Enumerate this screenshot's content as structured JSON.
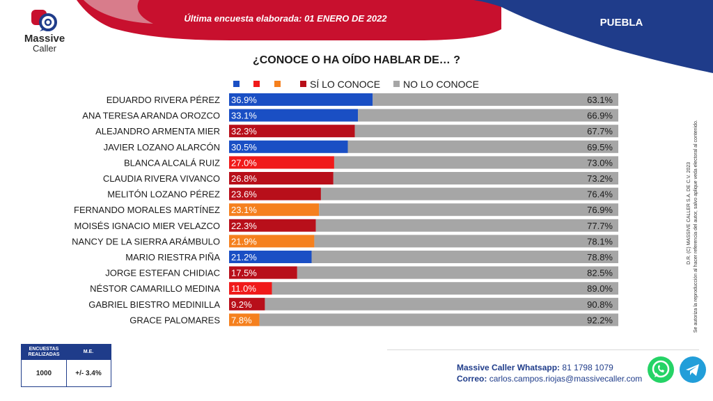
{
  "header": {
    "survey_date": "Última encuesta elaborada: 01  ENERO  DE 2022",
    "region": "PUEBLA",
    "logo_line1": "Massive",
    "logo_line2": "Caller"
  },
  "chart_data": {
    "type": "bar",
    "title": "¿CONOCE O HA OÍDO HABLAR DE… ?",
    "legend": [
      "SÍ LO CONOCE",
      "NO LO CONOCE"
    ],
    "categories": [
      "EDUARDO RIVERA PÉREZ",
      "ANA TERESA ARANDA OROZCO",
      "ALEJANDRO ARMENTA MIER",
      "JAVIER LOZANO ALARCÓN",
      "BLANCA ALCALÁ RUIZ",
      "CLAUDIA RIVERA VIVANCO",
      "MELITÓN LOZANO PÉREZ",
      "FERNANDO MORALES MARTÍNEZ",
      "MOISÉS IGNACIO MIER VELAZCO",
      "NANCY DE LA SIERRA ARÁMBULO",
      "MARIO RIESTRA PIÑA",
      "JORGE ESTEFAN CHIDIAC",
      "NÉSTOR CAMARILLO MEDINA",
      "GABRIEL BIESTRO MEDINILLA",
      "GRACE PALOMARES"
    ],
    "series": [
      {
        "name": "SÍ LO CONOCE",
        "values": [
          36.9,
          33.1,
          32.3,
          30.5,
          27.0,
          26.8,
          23.6,
          23.1,
          22.3,
          21.9,
          21.2,
          17.5,
          11.0,
          9.2,
          7.8
        ],
        "labels": [
          "36.9%",
          "33.1%",
          "32.3%",
          "30.5%",
          "27.0%",
          "26.8%",
          "23.6%",
          "23.1%",
          "22.3%",
          "21.9%",
          "21.2%",
          "17.5%",
          "11.0%",
          "9.2%",
          "7.8%"
        ]
      },
      {
        "name": "NO LO CONOCE",
        "values": [
          63.1,
          66.9,
          67.7,
          69.5,
          73.0,
          73.2,
          76.4,
          76.9,
          77.7,
          78.1,
          78.8,
          82.5,
          89.0,
          90.8,
          92.2
        ],
        "labels": [
          "63.1%",
          "66.9%",
          "67.7%",
          "69.5%",
          "73.0%",
          "73.2%",
          "76.4%",
          "76.9%",
          "77.7%",
          "78.1%",
          "78.8%",
          "82.5%",
          "89.0%",
          "90.8%",
          "92.2%"
        ]
      }
    ],
    "bar_colors": [
      "#1a4fc4",
      "#1a4fc4",
      "#b80f1a",
      "#1a4fc4",
      "#f01a1a",
      "#b80f1a",
      "#b80f1a",
      "#f5801e",
      "#b80f1a",
      "#f5801e",
      "#1a4fc4",
      "#b80f1a",
      "#f01a1a",
      "#b80f1a",
      "#f5801e"
    ],
    "legend_colors": [
      "#1a4fc4",
      "#f01a1a",
      "#f5801e",
      "#b80f1a",
      "#a6a6a6"
    ],
    "rest_color": "#a6a6a6",
    "xlim": [
      0,
      100
    ],
    "stacked": true
  },
  "side_note": {
    "line1": "D.R. (C) MASSIVE CALLER S.A. DE C.V. 2023",
    "line2": "Se autoriza la reproducción al hacer referencia del autor, salvo aplique veda electoral al contenido."
  },
  "sample_table": {
    "header1": "ENCUESTAS REALIZADAS",
    "header2": "M.E.",
    "value1": "1000",
    "value2": "+/- 3.4%"
  },
  "contact": {
    "whatsapp_label": "Massive Caller Whatsapp:",
    "whatsapp_number": "81 1798 1079",
    "email_label": "Correo:",
    "email": "carlos.campos.riojas@massivecaller.com"
  },
  "icons": [
    "whatsapp-icon",
    "telegram-icon"
  ],
  "colors": {
    "navy": "#1f3c8a",
    "red": "#c8102e"
  }
}
